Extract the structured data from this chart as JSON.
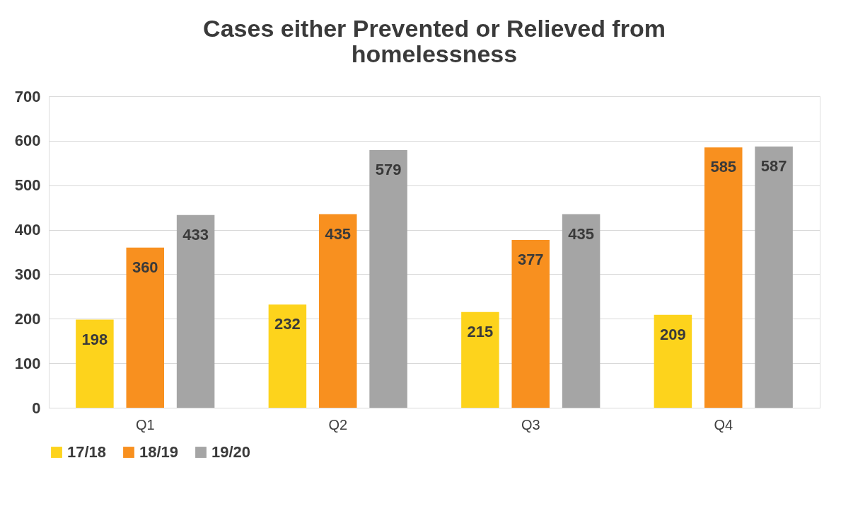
{
  "chart_data": {
    "type": "bar",
    "title": "Cases either Prevented or Relieved from homelessness",
    "categories": [
      "Q1",
      "Q2",
      "Q3",
      "Q4"
    ],
    "series": [
      {
        "name": "17/18",
        "color": "#fdd31c",
        "values": [
          198,
          232,
          215,
          209
        ]
      },
      {
        "name": "18/19",
        "color": "#f8901f",
        "values": [
          360,
          435,
          377,
          585
        ]
      },
      {
        "name": "19/20",
        "color": "#a5a5a5",
        "values": [
          433,
          579,
          435,
          587
        ]
      }
    ],
    "ylim": [
      0,
      700
    ],
    "yticks": [
      0,
      100,
      200,
      300,
      400,
      500,
      600,
      700
    ],
    "grid": "y",
    "legend": "bottom",
    "data_labels": true
  }
}
